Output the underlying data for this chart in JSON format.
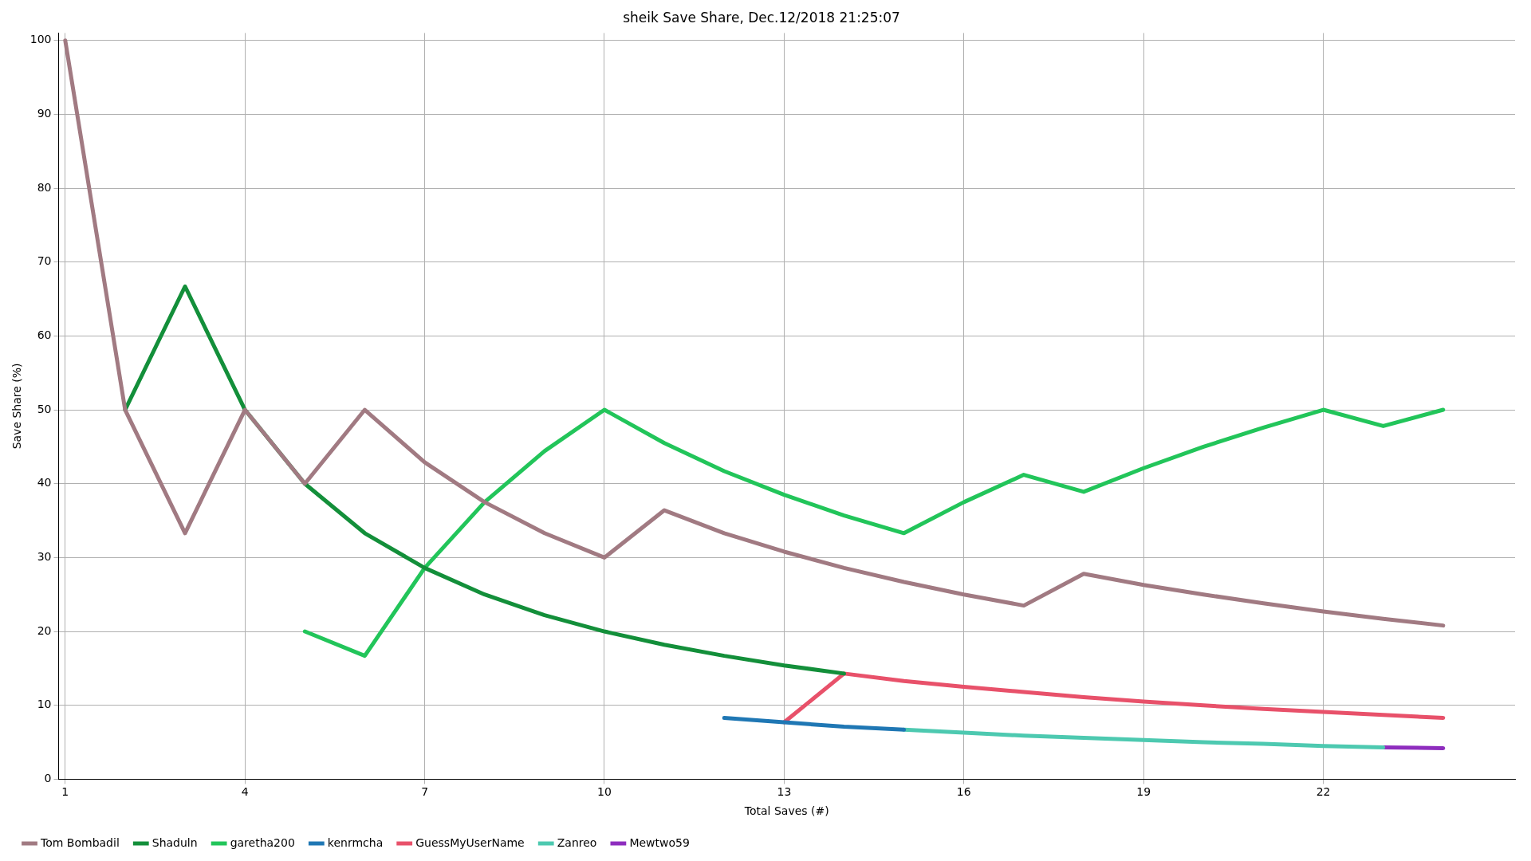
{
  "chart_data": {
    "type": "line",
    "title": "sheik Save Share, Dec.12/2018 21:25:07",
    "xlabel": "Total Saves (#)",
    "ylabel": "Save Share (%)",
    "x": [
      1,
      2,
      3,
      4,
      5,
      6,
      7,
      8,
      9,
      10,
      11,
      12,
      13,
      14,
      15,
      16,
      17,
      18,
      19,
      20,
      21,
      22,
      23,
      24
    ],
    "series": [
      {
        "name": "Tom Bombadil",
        "color": "#a17a82",
        "values": [
          100,
          50,
          33.3,
          50,
          40,
          50,
          42.9,
          37.5,
          33.3,
          30,
          36.4,
          33.3,
          30.8,
          28.6,
          26.7,
          25,
          23.5,
          27.8,
          26.3,
          25,
          23.8,
          22.7,
          21.7,
          20.8
        ]
      },
      {
        "name": "Shaduln",
        "color": "#138f3a",
        "values": [
          null,
          50,
          66.7,
          50,
          40,
          33.3,
          28.6,
          25,
          22.2,
          20,
          18.2,
          16.7,
          15.4,
          14.3,
          null,
          null,
          null,
          null,
          null,
          null,
          null,
          null,
          null,
          null
        ]
      },
      {
        "name": "garetha200",
        "color": "#22c55a",
        "values": [
          null,
          null,
          null,
          null,
          20,
          16.7,
          28.6,
          37.5,
          44.4,
          50,
          45.5,
          41.7,
          38.5,
          35.7,
          33.3,
          37.5,
          41.2,
          38.9,
          42.1,
          45,
          47.6,
          50,
          47.8,
          50
        ]
      },
      {
        "name": "kenrmcha",
        "color": "#1f77b4",
        "values": [
          null,
          null,
          null,
          null,
          null,
          null,
          null,
          null,
          null,
          null,
          null,
          8.3,
          7.7,
          7.1,
          6.7,
          null,
          null,
          null,
          null,
          null,
          null,
          null,
          null,
          null
        ]
      },
      {
        "name": "GuessMyUserName",
        "color": "#e8516a",
        "values": [
          null,
          null,
          null,
          null,
          null,
          null,
          null,
          null,
          null,
          null,
          null,
          null,
          7.7,
          14.3,
          13.3,
          12.5,
          11.8,
          11.1,
          10.5,
          10,
          9.5,
          9.1,
          8.7,
          8.3
        ]
      },
      {
        "name": "Zanreo",
        "color": "#4dc9b0",
        "values": [
          null,
          null,
          null,
          null,
          null,
          null,
          null,
          null,
          null,
          null,
          null,
          null,
          null,
          null,
          6.7,
          6.3,
          5.9,
          5.6,
          5.3,
          5,
          4.8,
          4.5,
          4.3,
          null
        ]
      },
      {
        "name": "Mewtwo59",
        "color": "#8e2dbe",
        "values": [
          null,
          null,
          null,
          null,
          null,
          null,
          null,
          null,
          null,
          null,
          null,
          null,
          null,
          null,
          null,
          null,
          null,
          null,
          null,
          null,
          null,
          null,
          4.3,
          4.2
        ]
      }
    ],
    "xlim": [
      0.89,
      25.2
    ],
    "xticks": [
      1,
      4,
      7,
      10,
      13,
      16,
      19,
      22
    ],
    "ylim": [
      0,
      101
    ],
    "yticks": [
      0,
      10,
      20,
      30,
      40,
      50,
      60,
      70,
      80,
      90,
      100
    ],
    "grid": true,
    "legend": "bottom left",
    "marker": "none",
    "line_style": "solid"
  }
}
